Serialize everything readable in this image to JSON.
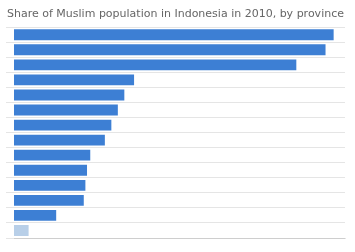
{
  "chart_data": {
    "type": "bar",
    "orientation": "horizontal",
    "title": "Share of Muslim population in Indonesia in 2010, by province",
    "categories": [
      null,
      null,
      null,
      null,
      null,
      null,
      null,
      null,
      null,
      null,
      null,
      null,
      null,
      null
    ],
    "values": [
      98.5,
      96.0,
      87.0,
      37.0,
      34.0,
      32.0,
      30.0,
      28.0,
      23.5,
      22.5,
      22.0,
      21.5,
      13.0,
      4.5
    ],
    "colors": [
      "#3d7fd4",
      "#3d7fd4",
      "#3d7fd4",
      "#3d7fd4",
      "#3d7fd4",
      "#3d7fd4",
      "#3d7fd4",
      "#3d7fd4",
      "#3d7fd4",
      "#3d7fd4",
      "#3d7fd4",
      "#3d7fd4",
      "#3d7fd4",
      "#b8cfe8"
    ],
    "xlim": [
      0,
      102
    ],
    "grid": true,
    "tick_labels": false
  }
}
